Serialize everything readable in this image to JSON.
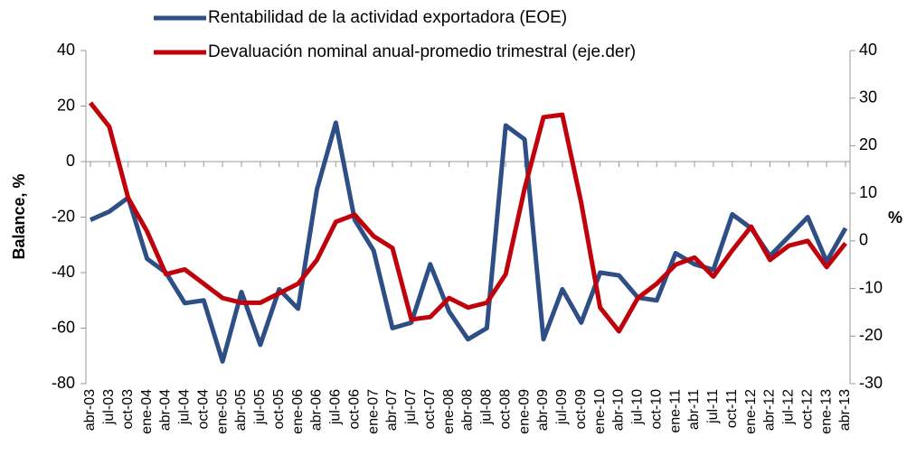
{
  "chart_data": {
    "type": "line",
    "categories": [
      "abr-03",
      "jul-03",
      "oct-03",
      "ene-04",
      "abr-04",
      "jul-04",
      "oct-04",
      "ene-05",
      "abr-05",
      "jul-05",
      "oct-05",
      "ene-06",
      "abr-06",
      "jul-06",
      "oct-06",
      "ene-07",
      "abr-07",
      "jul-07",
      "oct-07",
      "ene-08",
      "abr-08",
      "jul-08",
      "oct-08",
      "ene-09",
      "abr-09",
      "jul-09",
      "oct-09",
      "ene-10",
      "abr-10",
      "jul-10",
      "oct-10",
      "ene-11",
      "abr-11",
      "jul-11",
      "oct-11",
      "ene-12",
      "abr-12",
      "jul-12",
      "oct-12",
      "ene-13",
      "abr-13"
    ],
    "series": [
      {
        "name": "Rentabilidad de la actividad exportadora (EOE)",
        "color": "#2e4f85",
        "values": [
          -21,
          -18,
          -13,
          -35,
          -40,
          -51,
          -50,
          -72,
          -47,
          -66,
          -46,
          -53,
          -10,
          14,
          -21,
          -32,
          -60,
          -58,
          -37,
          -54,
          -64,
          -60,
          13,
          8,
          -64,
          -46,
          -58,
          -40,
          -41,
          -49,
          -50,
          -33,
          -37,
          -39,
          -19,
          -24,
          -34,
          -27,
          -20,
          -36,
          -24
        ]
      },
      {
        "name": "Devaluación nominal anual-promedio trimestral (eje.der)",
        "color": "#c0000b",
        "axis": "y2",
        "values": [
          29,
          24,
          9,
          2,
          -7,
          -6,
          -9,
          -12,
          -13,
          -13,
          -11,
          -9,
          -4,
          4,
          5.5,
          1,
          -1.5,
          -16.5,
          -16,
          -12,
          -14,
          -13,
          -7,
          11,
          26,
          26.5,
          8,
          -14,
          -19,
          -12,
          -9,
          -5,
          -3.5,
          -7.5,
          -2,
          3,
          -4,
          -1,
          0,
          -5.5,
          -0.5
        ]
      }
    ],
    "y_label": "Balance, %",
    "y2_label": "%",
    "ylim": [
      -80,
      40
    ],
    "yticks": [
      -80,
      -60,
      -40,
      -20,
      0,
      20,
      40
    ],
    "y2lim": [
      -30,
      40
    ],
    "y2ticks": [
      -30,
      -20,
      -10,
      0,
      10,
      20,
      30,
      40
    ],
    "legend": "top"
  }
}
